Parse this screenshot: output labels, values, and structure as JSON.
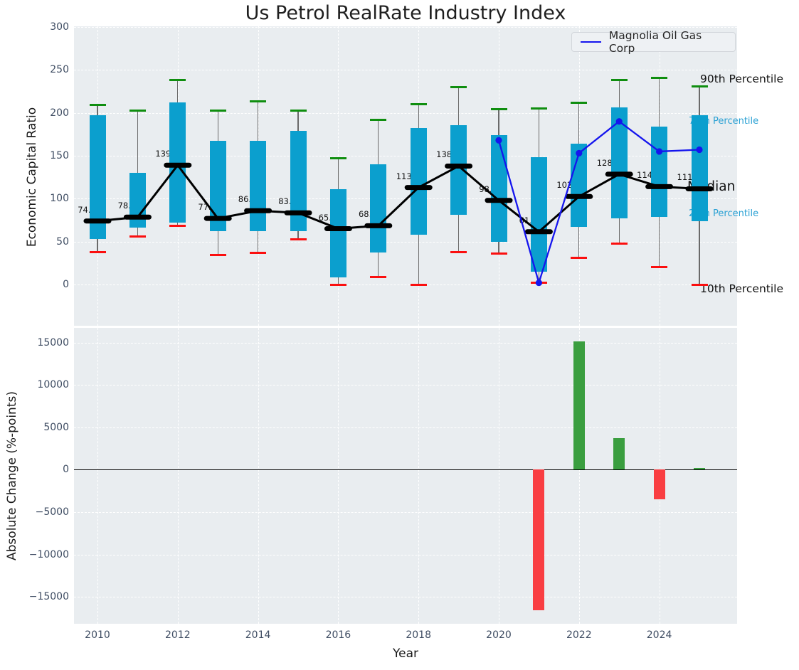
{
  "title": "Us Petrol RealRate Industry Index",
  "legend": {
    "label": "Magnolia Oil Gas Corp"
  },
  "annotations": {
    "p90": "90th Percentile",
    "p75": "75th Percentile",
    "median": "Median",
    "p25": "25th Percentile",
    "p10": "10th Percentile"
  },
  "colors": {
    "box": "#0b9fce",
    "cap_high": "#0f8e0f",
    "cap_low": "#fb0f0f",
    "median_line": "#000000",
    "company_line": "#1515ee",
    "bar_positive": "#3a9e3f",
    "bar_negative": "#f93e42",
    "plot_bg": "#e9edf0",
    "tick_text": "#3f4d63"
  },
  "chart_data": [
    {
      "type": "box",
      "title": "Us Petrol RealRate Industry Index",
      "ylabel": "Economic Capital Ratio",
      "ylim": [
        -48,
        301
      ],
      "yticks": [
        0,
        50,
        100,
        150,
        200,
        250,
        300
      ],
      "xticks": [
        2010,
        2012,
        2014,
        2016,
        2018,
        2020,
        2022,
        2024
      ],
      "grid": true,
      "legend_position": "upper right",
      "years": [
        2010,
        2011,
        2012,
        2013,
        2014,
        2015,
        2016,
        2017,
        2018,
        2019,
        2020,
        2021,
        2022,
        2023,
        2024,
        2025
      ],
      "percentiles": {
        "p10": [
          38,
          56,
          68,
          34,
          37,
          53,
          0,
          9,
          0,
          38,
          36,
          2,
          31,
          48,
          20,
          0
        ],
        "p25": [
          53,
          66,
          72,
          62,
          62,
          62,
          8,
          37,
          58,
          81,
          50,
          15,
          67,
          77,
          79,
          74
        ],
        "median": [
          74.0,
          78.5,
          139.0,
          77.0,
          86.0,
          83.5,
          65.0,
          68.5,
          113.0,
          138.0,
          98.0,
          61.5,
          102.5,
          128.5,
          114.0,
          111.5
        ],
        "p75": [
          197,
          130,
          212,
          167,
          167,
          179,
          111,
          140,
          182,
          186,
          174,
          148,
          164,
          206,
          184,
          197
        ],
        "p90": [
          209,
          203,
          238,
          203,
          213,
          203,
          147,
          192,
          210,
          230,
          204,
          205,
          212,
          238,
          241,
          231
        ]
      },
      "median_labels": [
        "74.0",
        "78.5",
        "139.0",
        "77.0",
        "86.0",
        "83.5",
        "65.0",
        "68.5",
        "113.0",
        "138.0",
        "98.0",
        "61.5",
        "102.5",
        "128.5",
        "114.0",
        "111.5"
      ],
      "series": [
        {
          "name": "Magnolia Oil Gas Corp",
          "x": [
            2020,
            2021,
            2022,
            2023,
            2024,
            2025
          ],
          "y": [
            168,
            2,
            153,
            190,
            155,
            157
          ]
        }
      ]
    },
    {
      "type": "bar",
      "ylabel": "Absolute Change (%-points)",
      "xlabel": "Year",
      "ylim": [
        -18200,
        16700
      ],
      "yticks": [
        15000,
        10000,
        5000,
        0,
        -5000,
        -10000,
        -15000
      ],
      "ytick_labels": [
        "15000",
        "10000",
        "5000",
        "0",
        "−5000",
        "−10000",
        "−15000"
      ],
      "xticks": [
        2010,
        2012,
        2014,
        2016,
        2018,
        2020,
        2022,
        2024
      ],
      "x": [
        2021,
        2022,
        2023,
        2024,
        2025
      ],
      "values": [
        -16600,
        15100,
        3700,
        -3500,
        200
      ]
    }
  ]
}
